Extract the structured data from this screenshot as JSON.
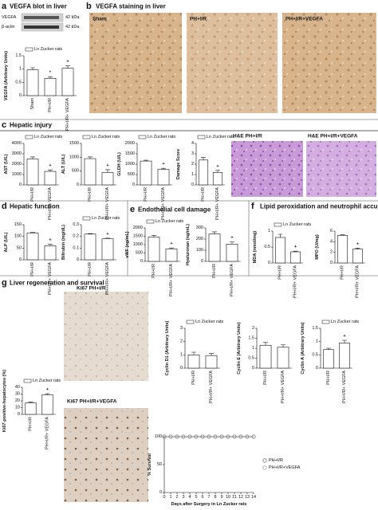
{
  "panels": [
    {
      "letter": "a",
      "title": "VEGFA blot in liver"
    },
    {
      "letter": "b",
      "title": "VEGFA staining in liver"
    },
    {
      "letter": "c",
      "title": "Hepatic injury"
    },
    {
      "letter": "d",
      "title": "Hepatic function"
    },
    {
      "letter": "e",
      "title": "Endothelial cell damage"
    },
    {
      "letter": "f",
      "title": "Lipid peroxidation and neutrophil accumulation"
    },
    {
      "letter": "g",
      "title": "Liver regeneration and survival"
    }
  ],
  "blot": [
    {
      "label": "VEGFA",
      "size": "42 kDa"
    },
    {
      "label": "β-actin",
      "size": "42 kDa"
    }
  ],
  "images": [
    "Sham",
    "PH+I/R",
    "PH+I/R+VEGFA",
    "H&E PH+I/R",
    "H&E PH+I/R+VEGFA",
    "Ki67 PH+I/R",
    "Ki67 PH+I/R+VEGFA"
  ],
  "chart_data": [
    {
      "type": "bar",
      "ylabel": "VEGFA (Arbitrary Units)",
      "categories": [
        "Sham",
        "PH+I/R",
        "PH+I/R+ VEGFA"
      ],
      "series": [
        {
          "name": "Ln Zucker rats",
          "color": "#ffffff",
          "values": [
            0.97,
            0.65,
            1.03
          ]
        }
      ],
      "errors": [
        0.08,
        0.06,
        0.09
      ],
      "annotations": [
        {
          "index": 1,
          "text": "*"
        },
        {
          "index": 2,
          "text": "+"
        }
      ],
      "ylim": [
        0,
        1.5
      ],
      "yticks": [
        0,
        0.5,
        1,
        1.5
      ]
    },
    {
      "type": "bar",
      "ylabel": "AST (U/L)",
      "categories": [
        "PH+I/R",
        "PH+I/R+ VEGFA"
      ],
      "series": [
        {
          "name": "Ln Zucker rats",
          "color": "#ffffff",
          "values": [
            2500,
            1300
          ]
        }
      ],
      "errors": [
        200,
        150
      ],
      "annotations": [
        {
          "index": 1,
          "text": "+"
        }
      ],
      "ylim": [
        0,
        4000
      ],
      "yticks": [
        0,
        1000,
        2000,
        3000,
        4000
      ]
    },
    {
      "type": "bar",
      "ylabel": "ALT (U/L)",
      "categories": [
        "PH+I/R",
        "PH+I/R+ VEGFA"
      ],
      "series": [
        {
          "name": "Ln Zucker rats",
          "color": "#ffffff",
          "values": [
            950,
            450
          ]
        }
      ],
      "errors": [
        60,
        100
      ],
      "annotations": [
        {
          "index": 1,
          "text": "+"
        }
      ],
      "ylim": [
        0,
        1500
      ],
      "yticks": [
        0,
        500,
        1000,
        1500
      ]
    },
    {
      "type": "bar",
      "ylabel": "GLDH (U/L)",
      "categories": [
        "PH+I/R",
        "PH+I/R+ VEGFA"
      ],
      "series": [
        {
          "name": "Ln Zucker rats",
          "color": "#ffffff",
          "values": [
            1150,
            750
          ]
        }
      ],
      "errors": [
        40,
        50
      ],
      "annotations": [
        {
          "index": 1,
          "text": "+"
        }
      ],
      "ylim": [
        0,
        2000
      ],
      "yticks": [
        0,
        500,
        1000,
        1500,
        2000
      ]
    },
    {
      "type": "bar",
      "ylabel": "Damage  Score",
      "categories": [
        "PH+I/R",
        "PH+I/R+ VEGFA"
      ],
      "series": [
        {
          "name": "Ln Zucker rats",
          "color": "#ffffff",
          "values": [
            2.4,
            1.2
          ]
        }
      ],
      "errors": [
        0.25,
        0.2
      ],
      "annotations": [
        {
          "index": 1,
          "text": "+"
        }
      ],
      "ylim": [
        0,
        4
      ],
      "yticks": [
        0,
        1,
        2,
        3,
        4
      ]
    },
    {
      "type": "bar",
      "ylabel": "ALP (U/L)",
      "categories": [
        "PH+I/R",
        "PH+I/R+ VEGFA"
      ],
      "values": [
        115,
        60
      ],
      "color": "#ffffff",
      "errors": [
        2,
        6
      ],
      "annotations": [
        {
          "index": 1,
          "text": "+"
        }
      ],
      "ylim": [
        0,
        150
      ],
      "yticks": [
        0,
        50,
        100,
        150
      ]
    },
    {
      "type": "bar",
      "ylabel": "Bilirubin (mg/dL)",
      "categories": [
        "PH+I/R",
        "PH+I/R+ VEGFA"
      ],
      "series": [
        {
          "name": "Ln Zucker rats",
          "color": "#ffffff",
          "values": [
            0.22,
            0.18
          ]
        }
      ],
      "errors": [
        0.004,
        0.005
      ],
      "annotations": [
        {
          "index": 1,
          "text": "+"
        }
      ],
      "ylim": [
        0,
        0.3
      ],
      "yticks": [
        0,
        0.1,
        0.2,
        0.3
      ]
    },
    {
      "type": "bar",
      "ylabel": "vWF (ng/mL)",
      "categories": [
        "PH+I/R",
        "PH+I/R+ VEGFA"
      ],
      "series": [
        {
          "name": "Ln Zucker rats",
          "color": "#ffffff",
          "values": [
            1450,
            750
          ]
        }
      ],
      "errors": [
        100,
        50
      ],
      "annotations": [
        {
          "index": 1,
          "text": "+"
        }
      ],
      "ylim": [
        0,
        2000
      ],
      "yticks": [
        0,
        500,
        1000,
        1500,
        2000
      ]
    },
    {
      "type": "bar",
      "ylabel": "Hyaluronan (ng/mL)",
      "categories": [
        "PH+I/R",
        "PH+I/R+ VEGFA"
      ],
      "values": [
        245,
        155
      ],
      "color": "#ffffff",
      "errors": [
        20,
        20
      ],
      "annotations": [
        {
          "index": 1,
          "text": "+"
        }
      ],
      "ylim": [
        0,
        300
      ],
      "yticks": [
        0,
        100,
        200,
        300
      ]
    },
    {
      "type": "bar",
      "ylabel": "MDA (nmol/mg)",
      "categories": [
        "PH+I/R",
        "PH+I/R+ VEGFA"
      ],
      "series": [
        {
          "name": "Ln Zucker rats",
          "color": "#ffffff",
          "values": [
            0.8,
            0.35
          ]
        }
      ],
      "errors": [
        0.1,
        0.02
      ],
      "annotations": [
        {
          "index": 1,
          "text": "+"
        }
      ],
      "ylim": [
        0,
        1
      ],
      "yticks": [
        0,
        0.5,
        1
      ]
    },
    {
      "type": "bar",
      "ylabel": "MPO (U/mg)",
      "categories": [
        "PH+I/R",
        "PH+I/R+ VEGFA"
      ],
      "values": [
        5.2,
        2.6
      ],
      "color": "#ffffff",
      "errors": [
        0.1,
        0.2
      ],
      "annotations": [
        {
          "index": 1,
          "text": "+"
        }
      ],
      "ylim": [
        0,
        6
      ],
      "yticks": [
        0,
        2,
        4,
        6
      ]
    },
    {
      "type": "bar",
      "ylabel": "Ki67-positive-hepatocytes (%)",
      "categories": [
        "PH+I/R",
        "PH+I/R+ VEGFA"
      ],
      "series": [
        {
          "name": "Ln Zucker rats",
          "color": "#ffffff",
          "values": [
            17,
            29
          ]
        }
      ],
      "errors": [
        1,
        1.5
      ],
      "annotations": [
        {
          "index": 1,
          "text": "+"
        }
      ],
      "ylim": [
        0,
        40
      ],
      "yticks": [
        0,
        10,
        20,
        30,
        40
      ]
    },
    {
      "type": "bar",
      "ylabel": "Cyclin D1 (Arbitrary Units)",
      "categories": [
        "PH+I/R",
        "PH+I/R+ VEGFA"
      ],
      "series": [
        {
          "name": "Ln Zucker rats",
          "color": "#ffffff",
          "values": [
            1.0,
            0.95
          ]
        }
      ],
      "errors": [
        0.2,
        0.15
      ],
      "ylim": [
        0,
        3
      ],
      "yticks": [
        0,
        1,
        2,
        3
      ]
    },
    {
      "type": "bar",
      "ylabel": "Cyclin E (Arbitrary Units)",
      "categories": [
        "PH+I/R",
        "PH+I/R+ VEGFA"
      ],
      "values": [
        1.15,
        1.05
      ],
      "color": "#ffffff",
      "errors": [
        0.15,
        0.12
      ],
      "ylim": [
        0,
        2
      ],
      "yticks": [
        0,
        0.5,
        1,
        1.5,
        2
      ]
    },
    {
      "type": "bar",
      "ylabel": "Cyclin A (Arbitrary Units)",
      "categories": [
        "PH+I/R",
        "PH+I/R+ VEGFA"
      ],
      "series": [
        {
          "name": "Ln Zucker rats",
          "color": "#ffffff",
          "values": [
            0.7,
            0.95
          ]
        }
      ],
      "errors": [
        0.05,
        0.1
      ],
      "annotations": [
        {
          "index": 1,
          "text": "+"
        }
      ],
      "ylim": [
        0,
        1.5
      ],
      "yticks": [
        0,
        0.5,
        1,
        1.5
      ]
    },
    {
      "type": "line",
      "ylabel": "% Survival",
      "xlabel": "Days after Surgery in Ln Zucker rats",
      "x": [
        0,
        1,
        2,
        3,
        4,
        5,
        6,
        7,
        8,
        9,
        10,
        11,
        12,
        13,
        14
      ],
      "series": [
        {
          "name": "PH+I/R",
          "color": "#444444",
          "values": [
            100,
            100,
            100,
            100,
            100,
            100,
            100,
            100,
            100,
            100,
            100,
            100,
            100,
            100,
            100
          ]
        },
        {
          "name": "PH+I/R+VEGFA",
          "color": "#888888",
          "values": [
            100,
            100,
            100,
            100,
            100,
            100,
            100,
            100,
            100,
            100,
            100,
            100,
            100,
            100,
            100
          ]
        }
      ],
      "xlim": [
        0,
        14
      ],
      "xticks": [
        0,
        1,
        2,
        3,
        4,
        5,
        6,
        7,
        8,
        9,
        10,
        11,
        12,
        13,
        14
      ],
      "ylim": [
        0,
        100
      ],
      "yticks": [
        0,
        50,
        100
      ]
    }
  ]
}
